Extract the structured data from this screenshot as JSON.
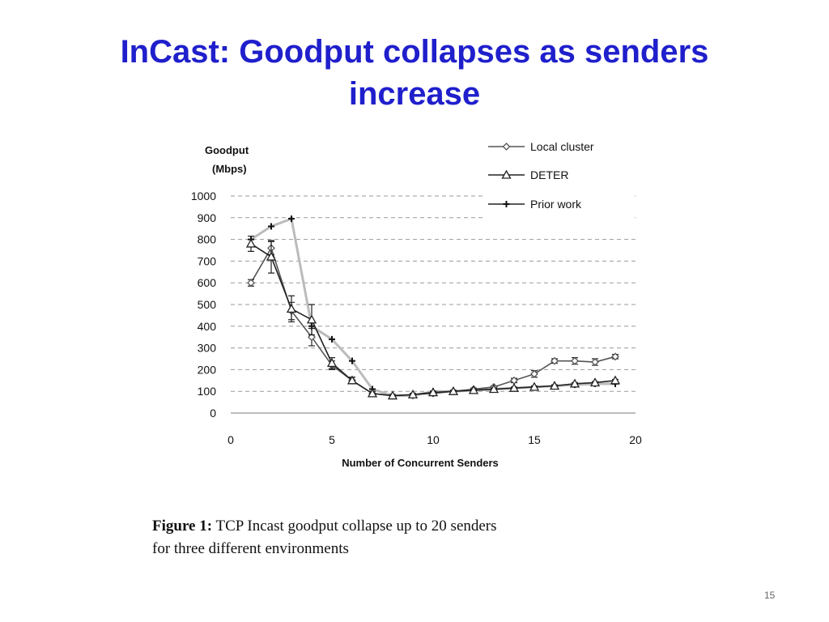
{
  "slide": {
    "title_line1": "InCast: Goodput collapses as senders",
    "title_line2": "increase",
    "page_number": "15"
  },
  "caption": {
    "label": "Figure 1:",
    "text_line1": "TCP Incast goodput collapse up to 20 senders",
    "text_line2": "for three different environments"
  },
  "colors": {
    "title": "#1f1fcc",
    "local_cluster": "#555555",
    "deter": "#222222",
    "prior_work": "#bbbbbb"
  },
  "chart_data": {
    "type": "line",
    "ylabel_line1": "Goodput",
    "ylabel_line2": "(Mbps)",
    "xlabel": "Number of Concurrent Senders",
    "xlim": [
      0,
      20
    ],
    "ylim": [
      0,
      1000
    ],
    "xticks": [
      0,
      5,
      10,
      15,
      20
    ],
    "yticks": [
      0,
      100,
      200,
      300,
      400,
      500,
      600,
      700,
      800,
      900,
      1000
    ],
    "grid": "horizontal dashed",
    "legend_position": "top-right",
    "series": [
      {
        "name": "Local cluster",
        "marker": "diamond",
        "color": "#555555",
        "x": [
          1,
          2,
          3,
          4,
          5,
          6,
          7,
          8,
          9,
          10,
          11,
          12,
          13,
          14,
          15,
          16,
          17,
          18,
          19
        ],
        "y": [
          600,
          760,
          470,
          350,
          220,
          150,
          90,
          80,
          85,
          90,
          100,
          110,
          120,
          150,
          180,
          240,
          240,
          235,
          260
        ],
        "err": [
          15,
          30,
          40,
          40,
          20,
          15,
          10,
          5,
          5,
          5,
          5,
          5,
          5,
          10,
          15,
          10,
          15,
          15,
          10
        ]
      },
      {
        "name": "DETER",
        "marker": "triangle",
        "color": "#222222",
        "x": [
          1,
          2,
          3,
          4,
          5,
          6,
          7,
          8,
          9,
          10,
          11,
          12,
          13,
          14,
          15,
          16,
          17,
          18,
          19
        ],
        "y": [
          780,
          720,
          480,
          430,
          230,
          150,
          90,
          80,
          85,
          95,
          100,
          105,
          110,
          115,
          120,
          125,
          135,
          140,
          150
        ],
        "err": [
          35,
          75,
          60,
          70,
          25,
          15,
          10,
          5,
          5,
          5,
          5,
          5,
          5,
          5,
          5,
          5,
          5,
          5,
          5
        ]
      },
      {
        "name": "Prior work",
        "marker": "plus",
        "color": "#bbbbbb",
        "x": [
          1,
          2,
          3,
          4,
          5,
          6,
          7,
          8,
          9,
          10,
          11,
          12,
          13,
          14,
          15,
          16,
          17,
          18,
          19
        ],
        "y": [
          800,
          860,
          895,
          400,
          340,
          240,
          110,
          80,
          80,
          100,
          100,
          105,
          110,
          115,
          120,
          125,
          130,
          135,
          135
        ],
        "err": [
          0,
          0,
          0,
          0,
          0,
          0,
          0,
          0,
          0,
          0,
          0,
          0,
          0,
          0,
          0,
          0,
          0,
          0,
          0
        ]
      }
    ]
  }
}
